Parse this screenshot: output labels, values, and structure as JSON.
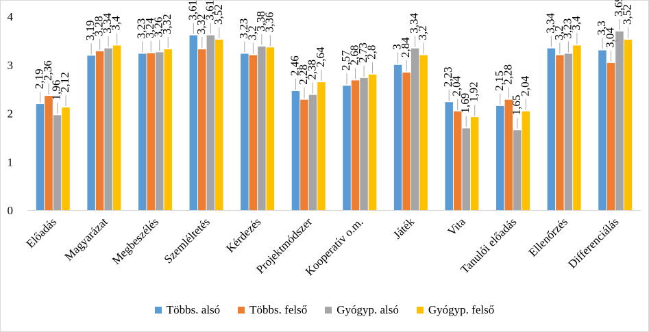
{
  "chart_data": {
    "type": "bar",
    "title": "",
    "xlabel": "",
    "ylabel": "",
    "ylim": [
      0,
      4
    ],
    "yticks": [
      "0",
      "1",
      "2",
      "3",
      "4"
    ],
    "grid": false,
    "legend_position": "bottom",
    "categories": [
      "Előadás",
      "Magyarázat",
      "Megbeszélés",
      "Szemléltetés",
      "Kérdezés",
      "Projektmódszer",
      "Kooperatív o.m.",
      "Játék",
      "Vita",
      "Tanulói előadás",
      "Ellenőrzés",
      "Differenciálás"
    ],
    "series": [
      {
        "name": "Többs. alsó",
        "color": "#5B9BD5",
        "values": [
          2.19,
          3.19,
          3.23,
          3.61,
          3.23,
          2.46,
          2.57,
          3,
          2.23,
          2.15,
          3.34,
          3.3
        ],
        "labels": [
          "2,19",
          "3,19",
          "3,23",
          "3,61",
          "3,23",
          "2,46",
          "2,57",
          "3",
          "2,23",
          "2,15",
          "3,34",
          "3,3"
        ]
      },
      {
        "name": "Többs. felső",
        "color": "#ED7D31",
        "values": [
          2.36,
          3.28,
          3.24,
          3.32,
          3.2,
          2.28,
          2.68,
          2.84,
          2.04,
          2.28,
          3.2,
          3.04
        ],
        "labels": [
          "2,36",
          "3,28",
          "3,24",
          "3,32",
          "3,2",
          "2,28",
          "2,68",
          "2,84",
          "2,04",
          "2,28",
          "3,2",
          "3,04"
        ]
      },
      {
        "name": "Gyógyp. alsó",
        "color": "#A5A5A5",
        "values": [
          1.96,
          3.34,
          3.26,
          3.61,
          3.38,
          2.38,
          2.73,
          3.34,
          1.69,
          1.65,
          3.23,
          3.69
        ],
        "labels": [
          "1,96",
          "3,34",
          "3,26",
          "3,61",
          "3,38",
          "2,38",
          "2,73",
          "3,34",
          "1,69",
          "1,65",
          "3,23",
          "3,69"
        ]
      },
      {
        "name": "Gyógyp. felső",
        "color": "#FFC000",
        "values": [
          2.12,
          3.4,
          3.32,
          3.52,
          3.36,
          2.64,
          2.8,
          3.2,
          1.92,
          2.04,
          3.4,
          3.52
        ],
        "labels": [
          "2,12",
          "3,4",
          "3,32",
          "3,52",
          "3,36",
          "2,64",
          "2,8",
          "3,2",
          "1,92",
          "2,04",
          "3,4",
          "3,52"
        ]
      }
    ]
  }
}
